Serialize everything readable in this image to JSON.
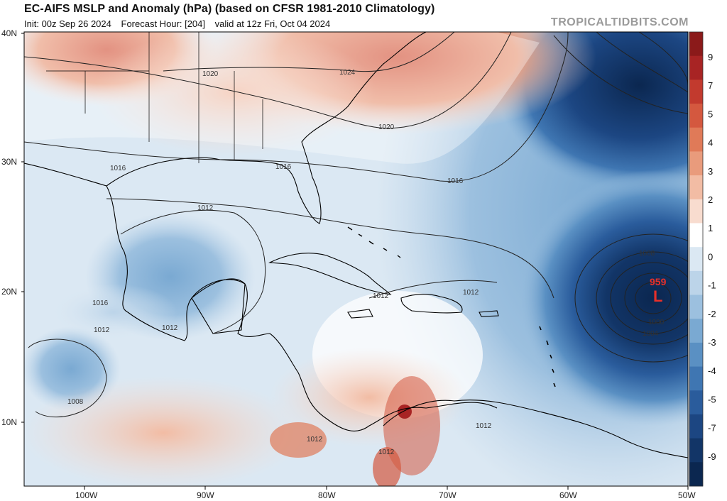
{
  "header": {
    "title": "EC-AIFS MSLP and Anomaly (hPa) (based on CFSR 1981-2010 Climatology)",
    "init": "Init: 00z Sep 26 2024",
    "forecast_hour": "Forecast Hour: [204]",
    "valid": "valid at 12z Fri, Oct 04 2024",
    "watermark": "TROPICALTIDBITS.COM"
  },
  "axes": {
    "lat_labels": [
      "40N",
      "30N",
      "20N",
      "10N"
    ],
    "lon_labels": [
      "100W",
      "90W",
      "80W",
      "70W",
      "60W",
      "50W"
    ]
  },
  "isobars": {
    "labels": [
      "1024",
      "1020",
      "1020",
      "1016",
      "1016",
      "1016",
      "1012",
      "1016",
      "1012",
      "1012",
      "1012",
      "1012",
      "1012",
      "1012",
      "1012",
      "1008",
      "1008",
      "1000",
      "1004"
    ]
  },
  "low_center": {
    "pressure": "959",
    "symbol": "L",
    "color": "#e8302a"
  },
  "colorbar": {
    "labels": [
      "9",
      "7",
      "5",
      "4",
      "3",
      "2",
      "1",
      "0",
      "-1",
      "-2",
      "-3",
      "-4",
      "-5",
      "-7",
      "-9"
    ],
    "colors": [
      "#8b1a1a",
      "#a82424",
      "#c23a2e",
      "#d4583f",
      "#e07a58",
      "#e99b7c",
      "#f2bca4",
      "#f8dccf",
      "#ffffff",
      "#dbe8f3",
      "#bcd4e9",
      "#9cc0df",
      "#7aa9d2",
      "#5a90c3",
      "#3f76b2",
      "#2a5c9c",
      "#1c4682",
      "#123567",
      "#0b2750"
    ]
  },
  "colors": {
    "land_outline": "#000000",
    "isobar": "#222222"
  }
}
